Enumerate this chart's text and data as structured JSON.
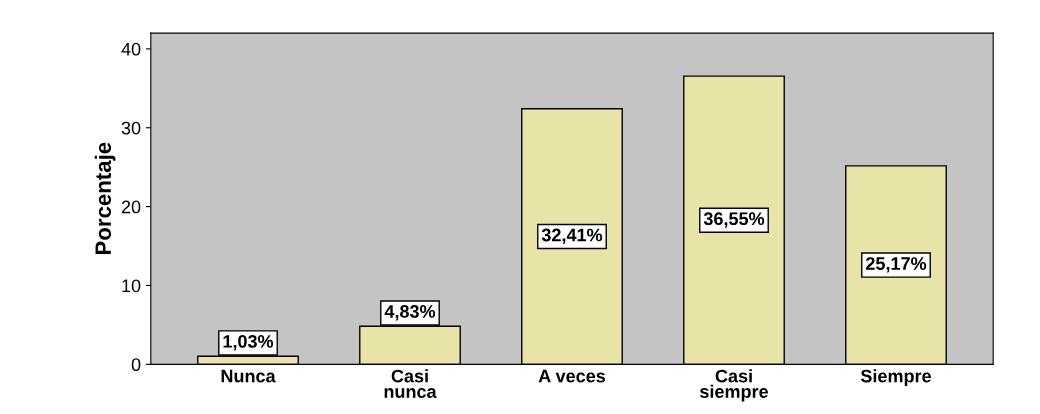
{
  "chart_data": {
    "type": "bar",
    "ylabel": "Porcentaje",
    "categories": [
      "Nunca",
      "Casi\nnunca",
      "A veces",
      "Casi\nsiempre",
      "Siempre"
    ],
    "values": [
      1.03,
      4.83,
      32.41,
      36.55,
      25.17
    ],
    "value_labels": [
      "1,03%",
      "4,83%",
      "32,41%",
      "36,55%",
      "25,17%"
    ],
    "color": "#e8e4a8",
    "ylim": [
      0,
      42
    ],
    "yticks": [
      0,
      10,
      20,
      30,
      40
    ],
    "grid": false
  }
}
